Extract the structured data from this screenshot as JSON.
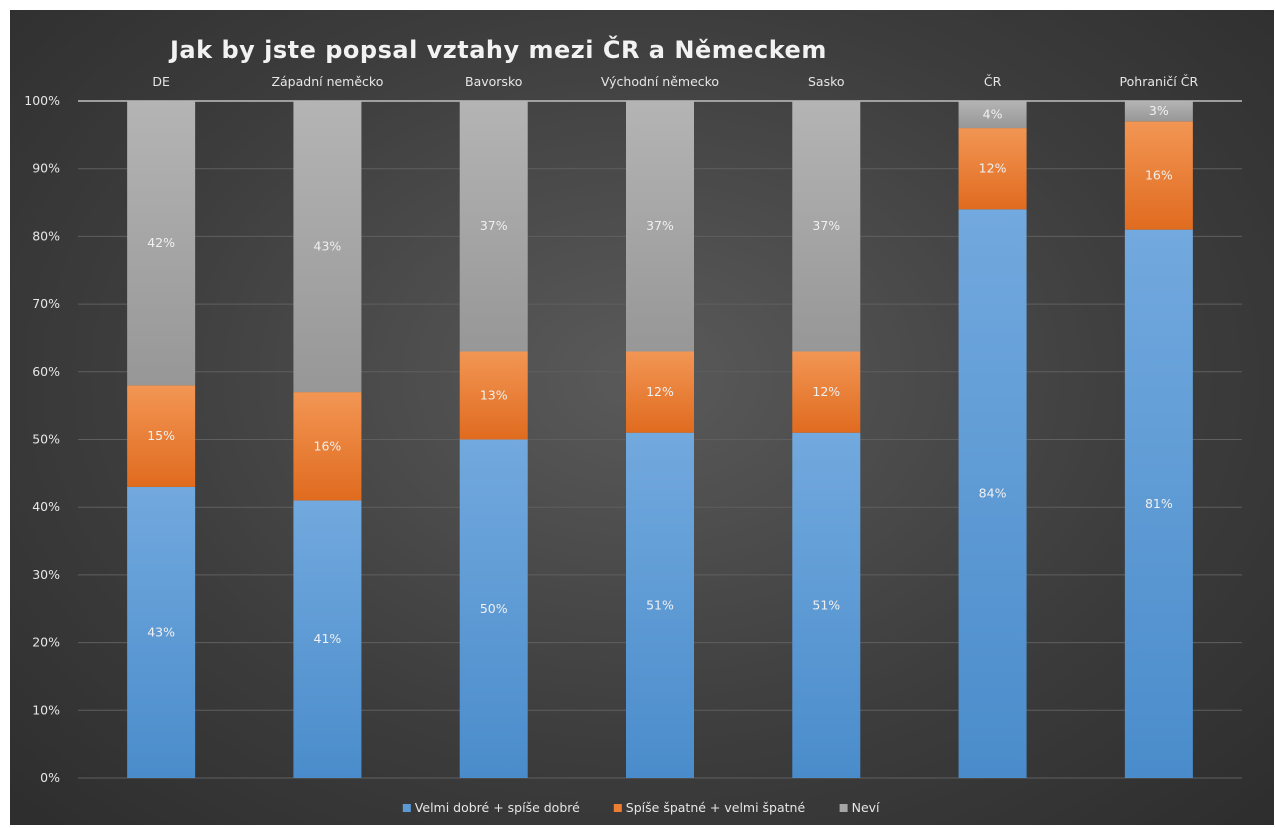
{
  "chart_data": {
    "type": "bar",
    "stacked": true,
    "title": "Jak by jste popsal vztahy mezi ČR a Německem",
    "categories": [
      "DE",
      "Západní neměcko",
      "Bavorsko",
      "Východní německo",
      "Sasko",
      "ČR",
      "Pohraničí ČR"
    ],
    "series": [
      {
        "name": "Velmi dobré + spíše dobré",
        "color": "#5b9bd5",
        "values": [
          43,
          41,
          50,
          51,
          51,
          84,
          81
        ],
        "labels": [
          "43%",
          "41%",
          "50%",
          "51%",
          "51%",
          "84%",
          "81%"
        ]
      },
      {
        "name": "Spíše špatné + velmi špatné",
        "color": "#ed7d31",
        "values": [
          15,
          16,
          13,
          12,
          12,
          12,
          16
        ],
        "labels": [
          "15%",
          "16%",
          "13%",
          "12%",
          "12%",
          "12%",
          "16%"
        ]
      },
      {
        "name": "Neví",
        "color": "#a5a5a5",
        "values": [
          42,
          43,
          37,
          37,
          37,
          4,
          3
        ],
        "labels": [
          "42%",
          "43%",
          "37%",
          "37%",
          "37%",
          "4%",
          "3%"
        ]
      }
    ],
    "ylim": [
      0,
      100
    ],
    "yticks": [
      0,
      10,
      20,
      30,
      40,
      50,
      60,
      70,
      80,
      90,
      100
    ],
    "ytick_labels": [
      "0%",
      "10%",
      "20%",
      "30%",
      "40%",
      "50%",
      "60%",
      "70%",
      "80%",
      "90%",
      "100%"
    ],
    "grid": true,
    "legend_position": "bottom"
  }
}
